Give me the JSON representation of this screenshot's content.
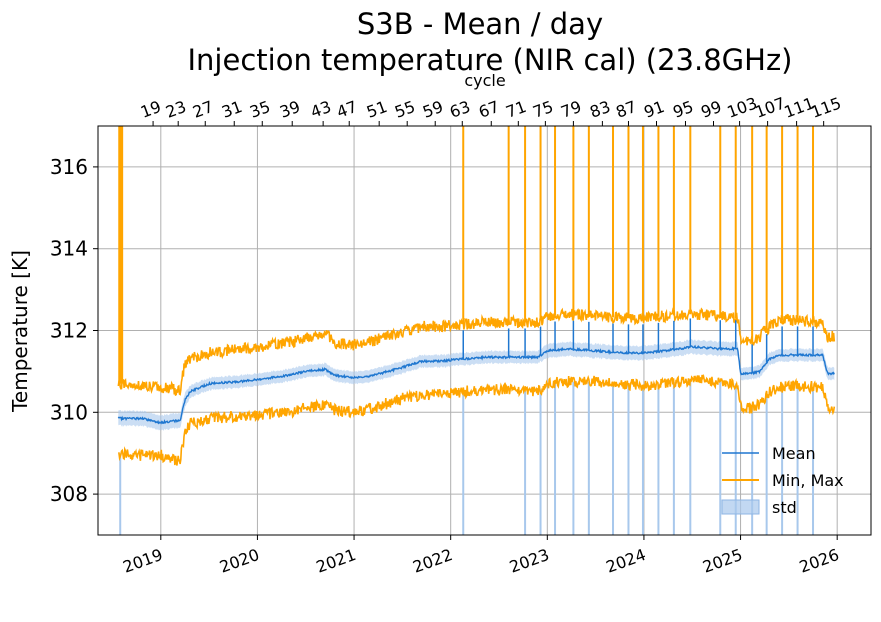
{
  "chart_data": {
    "type": "line",
    "title_line1": "S3B - Mean / day",
    "title_line2": "Injection temperature (NIR cal) (23.8GHz)",
    "ylabel": "Temperature [K]",
    "x2label": "cycle",
    "ylim": [
      307,
      317
    ],
    "yticks": [
      308,
      310,
      312,
      314,
      316
    ],
    "xlim": [
      2018.35,
      2026.35
    ],
    "xticks": [
      {
        "value": 2019,
        "label": "2019"
      },
      {
        "value": 2020,
        "label": "2020"
      },
      {
        "value": 2021,
        "label": "2021"
      },
      {
        "value": 2022,
        "label": "2022"
      },
      {
        "value": 2023,
        "label": "2023"
      },
      {
        "value": 2024,
        "label": "2024"
      },
      {
        "value": 2025,
        "label": "2025"
      },
      {
        "value": 2026,
        "label": "2026"
      }
    ],
    "cycle_ticks": [
      {
        "value": 2018.92,
        "label": "19"
      },
      {
        "value": 2019.18,
        "label": "23"
      },
      {
        "value": 2019.46,
        "label": "27"
      },
      {
        "value": 2019.76,
        "label": "31"
      },
      {
        "value": 2020.05,
        "label": "35"
      },
      {
        "value": 2020.36,
        "label": "39"
      },
      {
        "value": 2020.68,
        "label": "43"
      },
      {
        "value": 2020.95,
        "label": "47"
      },
      {
        "value": 2021.26,
        "label": "51"
      },
      {
        "value": 2021.55,
        "label": "55"
      },
      {
        "value": 2021.84,
        "label": "59"
      },
      {
        "value": 2022.12,
        "label": "63"
      },
      {
        "value": 2022.42,
        "label": "67"
      },
      {
        "value": 2022.7,
        "label": "71"
      },
      {
        "value": 2022.98,
        "label": "75"
      },
      {
        "value": 2023.27,
        "label": "79"
      },
      {
        "value": 2023.57,
        "label": "83"
      },
      {
        "value": 2023.84,
        "label": "87"
      },
      {
        "value": 2024.13,
        "label": "91"
      },
      {
        "value": 2024.43,
        "label": "95"
      },
      {
        "value": 2024.72,
        "label": "99"
      },
      {
        "value": 2024.99,
        "label": "103"
      },
      {
        "value": 2025.28,
        "label": "107"
      },
      {
        "value": 2025.58,
        "label": "111"
      },
      {
        "value": 2025.86,
        "label": "115"
      }
    ],
    "legend": {
      "position": "lower right",
      "entries": [
        {
          "label": "Mean",
          "color": "#1f77d0"
        },
        {
          "label": "Min, Max",
          "color": "#ffa500"
        },
        {
          "label": "std",
          "color": "#a8c8ec"
        }
      ]
    },
    "colors": {
      "mean": "#1f77d0",
      "minmax": "#ffa500",
      "std": "#a8c8ec",
      "grid": "#b0b0b0"
    },
    "grid": true,
    "series": {
      "x": [
        2018.56,
        2018.6,
        2018.8,
        2019.0,
        2019.2,
        2019.25,
        2019.3,
        2019.5,
        2019.8,
        2020.0,
        2020.3,
        2020.5,
        2020.7,
        2020.8,
        2021.0,
        2021.2,
        2021.5,
        2021.7,
        2021.9,
        2022.1,
        2022.4,
        2022.6,
        2022.9,
        2023.0,
        2023.2,
        2023.5,
        2023.8,
        2024.0,
        2024.2,
        2024.5,
        2024.8,
        2024.97,
        2025.0,
        2025.1,
        2025.2,
        2025.3,
        2025.4,
        2025.6,
        2025.85,
        2025.9,
        2025.97
      ],
      "mean": [
        309.85,
        309.85,
        309.85,
        309.75,
        309.8,
        310.3,
        310.5,
        310.7,
        310.75,
        310.8,
        310.9,
        311.0,
        311.05,
        310.9,
        310.85,
        310.9,
        311.1,
        311.25,
        311.25,
        311.3,
        311.35,
        311.35,
        311.35,
        311.5,
        311.55,
        311.5,
        311.45,
        311.45,
        311.5,
        311.6,
        311.55,
        311.55,
        310.95,
        310.95,
        311.0,
        311.3,
        311.4,
        311.4,
        311.4,
        310.95,
        310.95
      ],
      "std": [
        0.18,
        0.18,
        0.18,
        0.18,
        0.18,
        0.18,
        0.15,
        0.15,
        0.15,
        0.15,
        0.15,
        0.15,
        0.15,
        0.15,
        0.15,
        0.15,
        0.15,
        0.15,
        0.15,
        0.15,
        0.15,
        0.15,
        0.15,
        0.17,
        0.17,
        0.17,
        0.17,
        0.17,
        0.17,
        0.17,
        0.17,
        0.17,
        0.15,
        0.15,
        0.15,
        0.15,
        0.15,
        0.15,
        0.15,
        0.15,
        0.15
      ],
      "max": [
        310.7,
        310.7,
        310.65,
        310.6,
        310.55,
        311.2,
        311.3,
        311.45,
        311.55,
        311.6,
        311.7,
        311.8,
        311.95,
        311.7,
        311.65,
        311.75,
        311.95,
        312.1,
        312.1,
        312.15,
        312.2,
        312.2,
        312.2,
        312.35,
        312.4,
        312.35,
        312.3,
        312.3,
        312.35,
        312.4,
        312.35,
        312.3,
        311.8,
        311.75,
        311.85,
        312.1,
        312.25,
        312.25,
        312.2,
        311.85,
        311.85
      ],
      "min": [
        309.0,
        309.0,
        308.95,
        308.95,
        308.8,
        309.5,
        309.7,
        309.85,
        309.9,
        309.95,
        310.0,
        310.1,
        310.2,
        310.05,
        310.0,
        310.1,
        310.35,
        310.4,
        310.45,
        310.5,
        310.55,
        310.55,
        310.5,
        310.7,
        310.75,
        310.75,
        310.7,
        310.65,
        310.7,
        310.8,
        310.75,
        310.7,
        310.15,
        310.1,
        310.2,
        310.5,
        310.6,
        310.65,
        310.6,
        310.1,
        310.1
      ]
    },
    "max_spikes": [
      2018.57,
      2018.585,
      2018.6,
      2022.13,
      2022.6,
      2022.77,
      2022.93,
      2023.08,
      2023.27,
      2023.43,
      2023.68,
      2023.84,
      2023.99,
      2024.15,
      2024.31,
      2024.48,
      2024.79,
      2024.95,
      2025.12,
      2025.27,
      2025.43,
      2025.59,
      2025.75
    ],
    "min_spikes": [
      2018.58,
      2022.13,
      2022.77,
      2022.93,
      2023.08,
      2023.27,
      2023.43,
      2023.68,
      2023.84,
      2023.99,
      2024.15,
      2024.31,
      2024.48,
      2024.79,
      2024.95,
      2025.12,
      2025.27,
      2025.43,
      2025.59,
      2025.75
    ]
  }
}
